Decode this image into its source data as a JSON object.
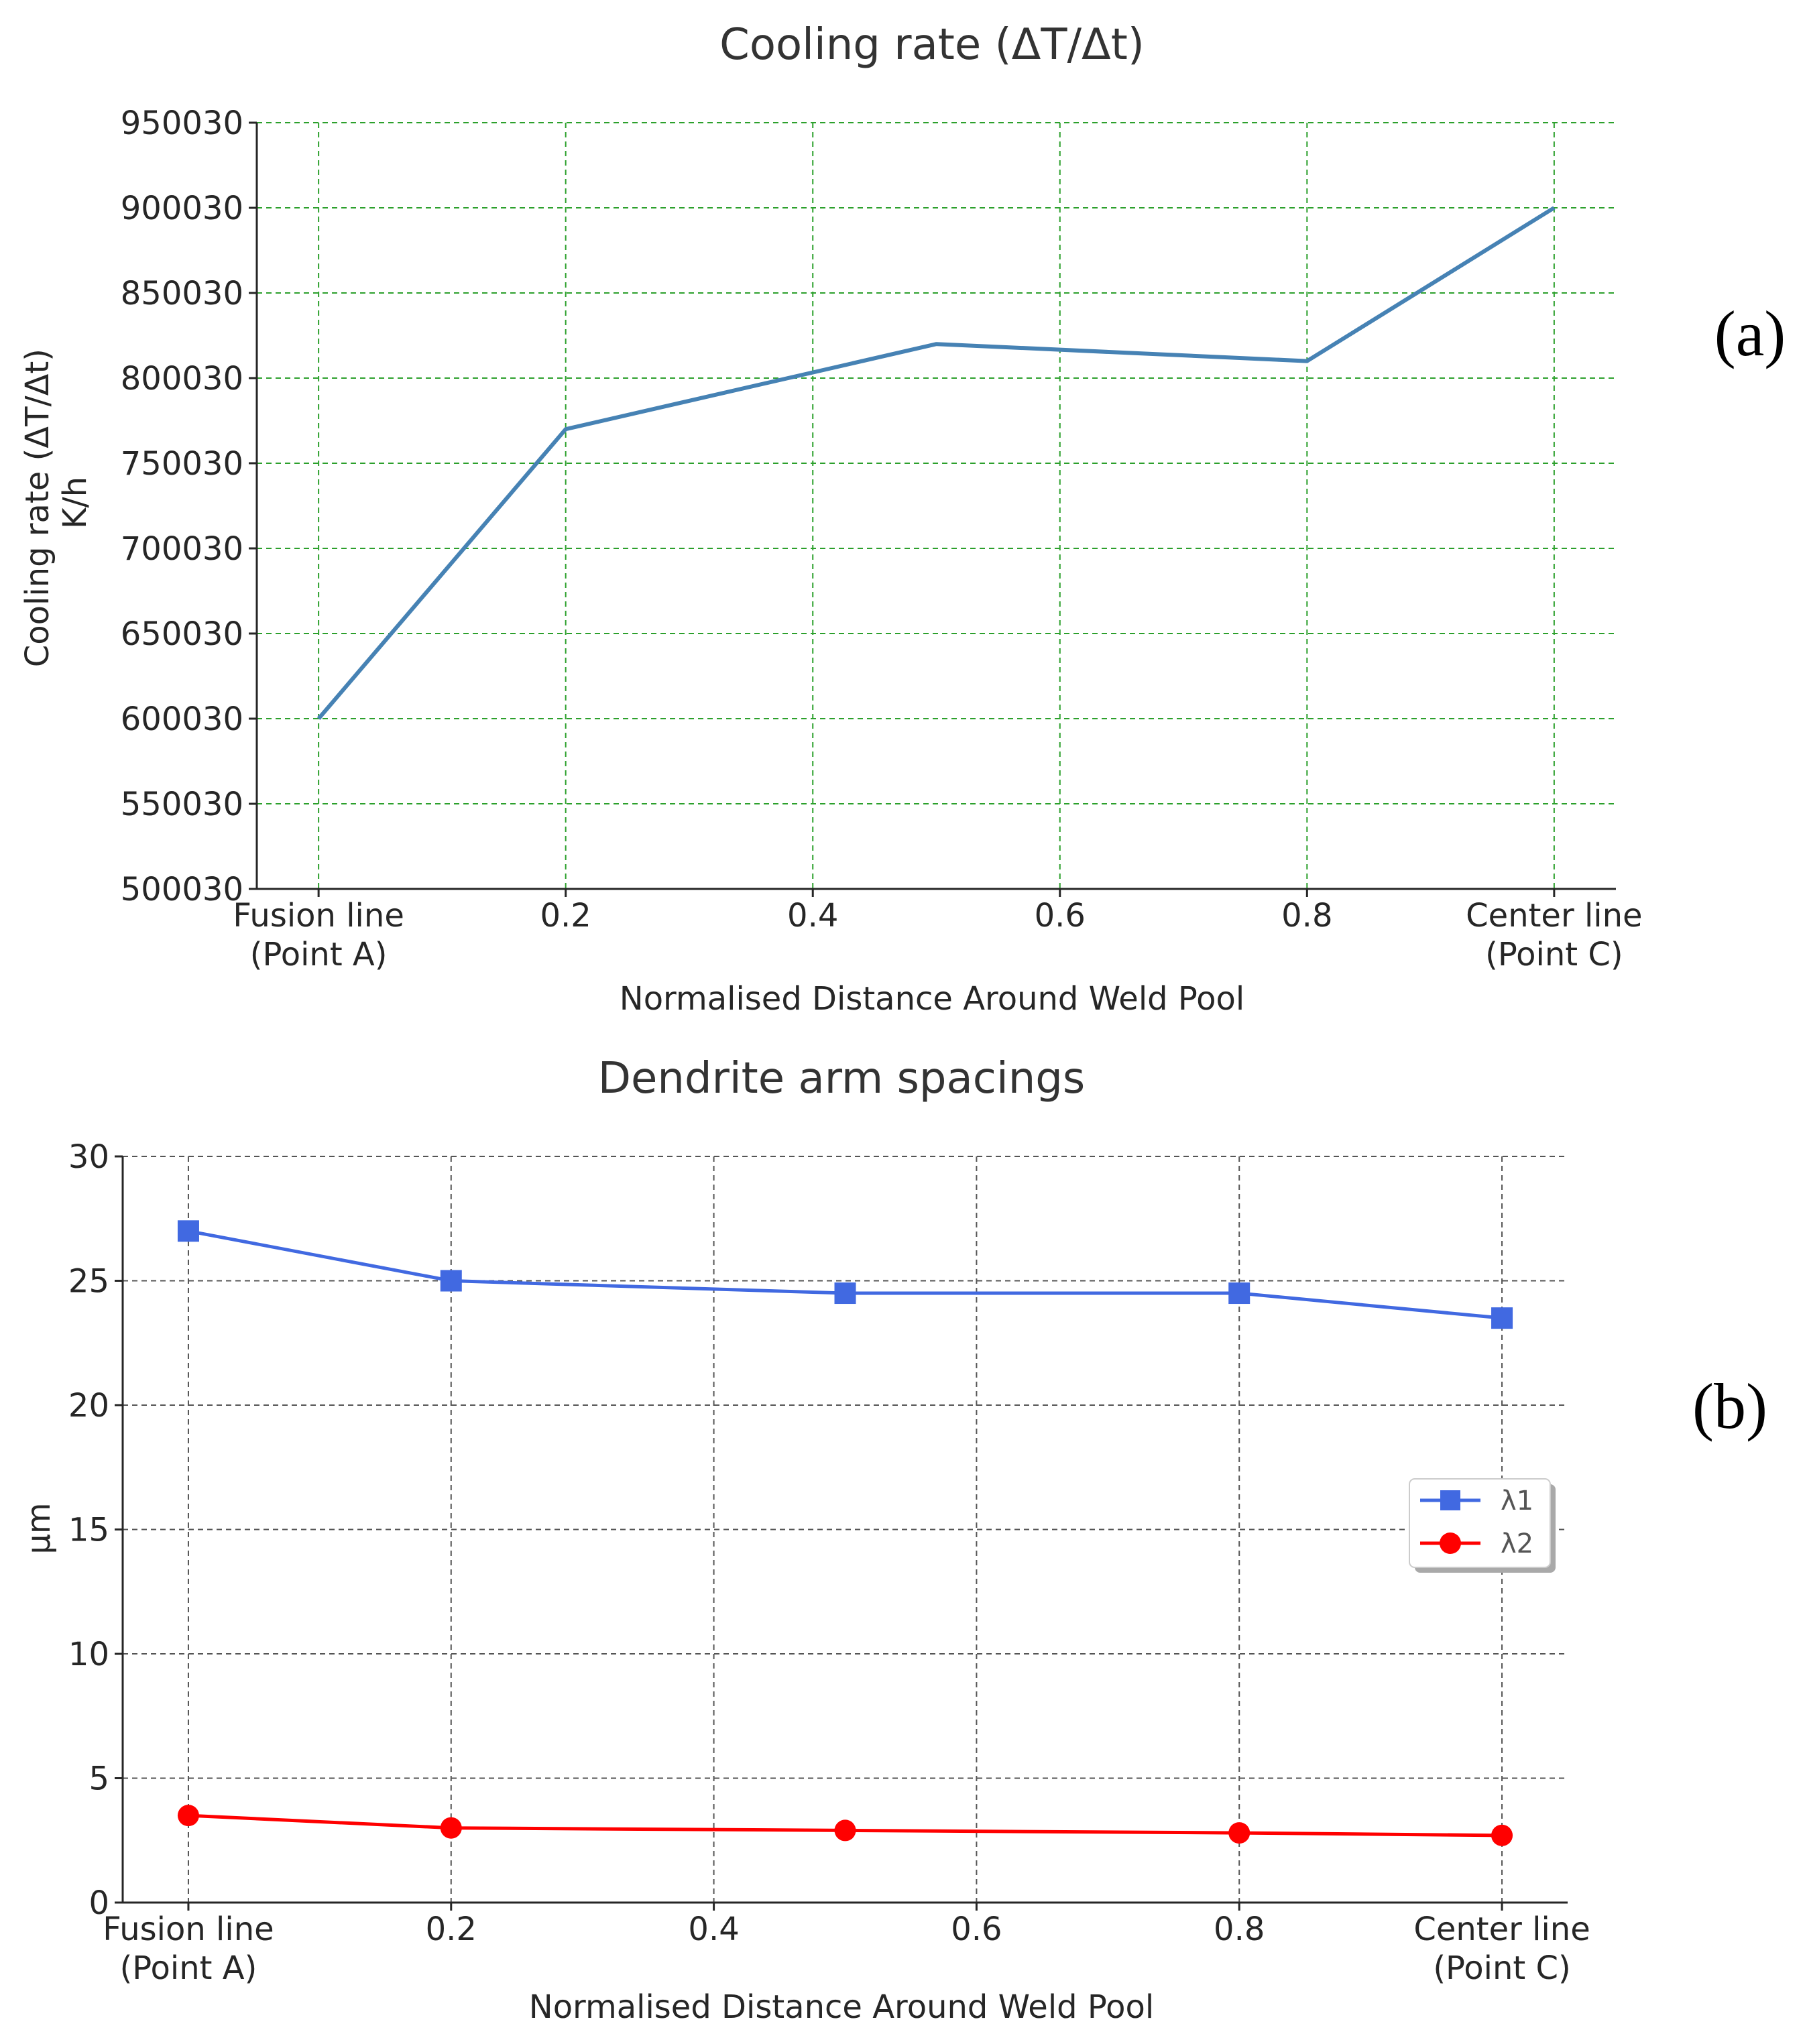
{
  "chart_data": [
    {
      "type": "line",
      "panel_label": "(a)",
      "title": "Cooling rate (ΔT/Δt)",
      "xlabel": "Normalised Distance Around Weld Pool",
      "ylabel_lines": [
        "Cooling rate (ΔT/Δt)",
        "K/h"
      ],
      "x_ticks": [
        {
          "value": 0.0,
          "lines": [
            "Fusion line",
            "(Point A)"
          ]
        },
        {
          "value": 0.2,
          "lines": [
            "0.2"
          ]
        },
        {
          "value": 0.4,
          "lines": [
            "0.4"
          ]
        },
        {
          "value": 0.6,
          "lines": [
            "0.6"
          ]
        },
        {
          "value": 0.8,
          "lines": [
            "0.8"
          ]
        },
        {
          "value": 1.0,
          "lines": [
            "Center line",
            "(Point C)"
          ]
        }
      ],
      "y_ticks": [
        500030,
        550030,
        600030,
        650030,
        700030,
        750030,
        800030,
        850030,
        900030,
        950030
      ],
      "xlim": [
        -0.05,
        1.05
      ],
      "ylim": [
        500030,
        950030
      ],
      "grid": true,
      "grid_color": "#2ca02c",
      "series": [
        {
          "color": "#4682b4",
          "marker": "none",
          "x": [
            0.0,
            0.2,
            0.5,
            0.8,
            1.0
          ],
          "y": [
            600030,
            770030,
            820030,
            810030,
            900030
          ]
        }
      ]
    },
    {
      "type": "line",
      "panel_label": "(b)",
      "title": "Dendrite arm spacings",
      "xlabel": "Normalised Distance Around Weld Pool",
      "ylabel_lines": [
        "µm"
      ],
      "x_ticks": [
        {
          "value": 0.0,
          "lines": [
            "Fusion line",
            "(Point A)"
          ]
        },
        {
          "value": 0.2,
          "lines": [
            "0.2"
          ]
        },
        {
          "value": 0.4,
          "lines": [
            "0.4"
          ]
        },
        {
          "value": 0.6,
          "lines": [
            "0.6"
          ]
        },
        {
          "value": 0.8,
          "lines": [
            "0.8"
          ]
        },
        {
          "value": 1.0,
          "lines": [
            "Center line",
            "(Point C)"
          ]
        }
      ],
      "y_ticks": [
        0,
        5,
        10,
        15,
        20,
        25,
        30
      ],
      "xlim": [
        -0.05,
        1.05
      ],
      "ylim": [
        0,
        30
      ],
      "grid": true,
      "grid_color": "#555555",
      "legend": "center-right",
      "series": [
        {
          "name": "λ1",
          "color": "#4169e1",
          "marker": "square",
          "x": [
            0.0,
            0.2,
            0.5,
            0.8,
            1.0
          ],
          "y": [
            27,
            25,
            24.5,
            24.5,
            23.5
          ]
        },
        {
          "name": "λ2",
          "color": "#ff0000",
          "marker": "circle",
          "x": [
            0.0,
            0.2,
            0.5,
            0.8,
            1.0
          ],
          "y": [
            3.5,
            3,
            2.9,
            2.8,
            2.7
          ]
        }
      ]
    }
  ]
}
